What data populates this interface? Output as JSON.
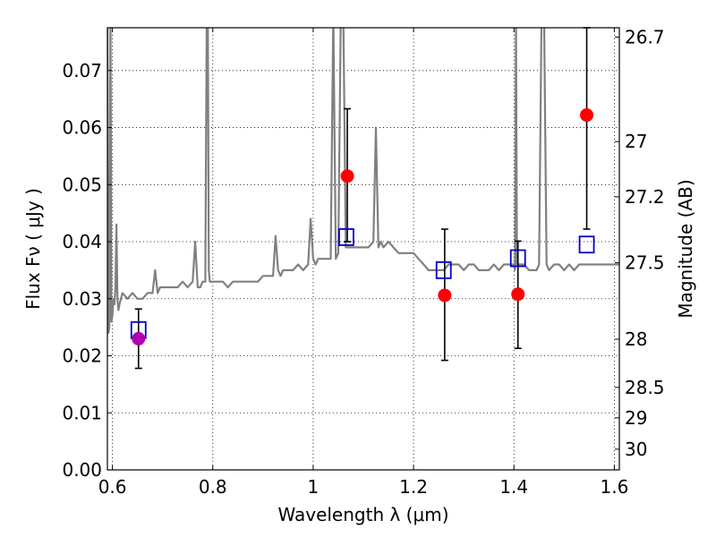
{
  "chart_data": {
    "type": "scatter",
    "title": "",
    "xlabel": "Wavelength  λ (μm)",
    "ylabel": "Flux  Fν  ( μJy )",
    "ylabel_right": "Magnitude (AB)",
    "xlim": [
      0.59,
      1.61
    ],
    "ylim": [
      0.0,
      0.0775
    ],
    "grid": true,
    "x_ticks": [
      {
        "value": 0.6,
        "label": "0.6"
      },
      {
        "value": 0.8,
        "label": "0.8"
      },
      {
        "value": 1.0,
        "label": "1"
      },
      {
        "value": 1.2,
        "label": "1.2"
      },
      {
        "value": 1.4,
        "label": "1.4"
      },
      {
        "value": 1.6,
        "label": "1.6"
      }
    ],
    "y_ticks": [
      {
        "value": 0.0,
        "label": "0.00"
      },
      {
        "value": 0.01,
        "label": "0.01"
      },
      {
        "value": 0.02,
        "label": "0.02"
      },
      {
        "value": 0.03,
        "label": "0.03"
      },
      {
        "value": 0.04,
        "label": "0.04"
      },
      {
        "value": 0.05,
        "label": "0.05"
      },
      {
        "value": 0.06,
        "label": "0.06"
      },
      {
        "value": 0.07,
        "label": "0.07"
      }
    ],
    "mag_ticks": [
      {
        "value": 26.7,
        "label": "26.7"
      },
      {
        "value": 27.0,
        "label": "27"
      },
      {
        "value": 27.2,
        "label": "27.2"
      },
      {
        "value": 27.5,
        "label": "27.5"
      },
      {
        "value": 28.0,
        "label": "28"
      },
      {
        "value": 28.5,
        "label": "28.5"
      },
      {
        "value": 29.0,
        "label": "29"
      },
      {
        "value": 30.0,
        "label": "30"
      }
    ],
    "colors": {
      "spectrum": "#808080",
      "observed": "#ff0000",
      "observed_special": "#b000b0",
      "model": "#0000cc",
      "errorbar": "#000000"
    },
    "spectrum": {
      "x": [
        0.59,
        0.592,
        0.594,
        0.596,
        0.598,
        0.6,
        0.602,
        0.604,
        0.606,
        0.608,
        0.61,
        0.612,
        0.614,
        0.62,
        0.63,
        0.64,
        0.65,
        0.66,
        0.67,
        0.68,
        0.685,
        0.69,
        0.695,
        0.7,
        0.71,
        0.72,
        0.73,
        0.74,
        0.75,
        0.76,
        0.765,
        0.77,
        0.775,
        0.78,
        0.785,
        0.788,
        0.79,
        0.792,
        0.794,
        0.796,
        0.8,
        0.81,
        0.82,
        0.83,
        0.84,
        0.85,
        0.86,
        0.87,
        0.88,
        0.89,
        0.9,
        0.91,
        0.92,
        0.925,
        0.93,
        0.935,
        0.94,
        0.95,
        0.96,
        0.97,
        0.98,
        0.99,
        0.995,
        1.0,
        1.005,
        1.01,
        1.02,
        1.03,
        1.035,
        1.04,
        1.045,
        1.05,
        1.055,
        1.06,
        1.065,
        1.07,
        1.08,
        1.09,
        1.1,
        1.11,
        1.12,
        1.125,
        1.13,
        1.135,
        1.14,
        1.15,
        1.16,
        1.17,
        1.18,
        1.19,
        1.2,
        1.21,
        1.22,
        1.23,
        1.24,
        1.25,
        1.26,
        1.27,
        1.28,
        1.29,
        1.3,
        1.31,
        1.32,
        1.33,
        1.34,
        1.35,
        1.36,
        1.37,
        1.38,
        1.39,
        1.4,
        1.402,
        1.404,
        1.406,
        1.41,
        1.42,
        1.43,
        1.44,
        1.445,
        1.45,
        1.455,
        1.46,
        1.465,
        1.47,
        1.48,
        1.49,
        1.5,
        1.51,
        1.52,
        1.53,
        1.54,
        1.55,
        1.56,
        1.57,
        1.58,
        1.59,
        1.6,
        1.61
      ],
      "y": [
        0.08,
        0.024,
        0.025,
        0.08,
        0.026,
        0.027,
        0.03,
        0.029,
        0.032,
        0.043,
        0.03,
        0.028,
        0.029,
        0.031,
        0.03,
        0.031,
        0.03,
        0.03,
        0.031,
        0.031,
        0.035,
        0.031,
        0.032,
        0.032,
        0.032,
        0.032,
        0.032,
        0.033,
        0.032,
        0.033,
        0.04,
        0.032,
        0.032,
        0.033,
        0.033,
        0.08,
        0.08,
        0.035,
        0.033,
        0.033,
        0.033,
        0.033,
        0.033,
        0.032,
        0.033,
        0.033,
        0.033,
        0.033,
        0.033,
        0.033,
        0.034,
        0.034,
        0.034,
        0.041,
        0.035,
        0.034,
        0.035,
        0.035,
        0.035,
        0.036,
        0.035,
        0.036,
        0.044,
        0.037,
        0.036,
        0.037,
        0.037,
        0.037,
        0.037,
        0.08,
        0.037,
        0.038,
        0.08,
        0.08,
        0.039,
        0.039,
        0.039,
        0.039,
        0.039,
        0.039,
        0.04,
        0.06,
        0.039,
        0.04,
        0.039,
        0.04,
        0.039,
        0.038,
        0.038,
        0.038,
        0.038,
        0.037,
        0.036,
        0.035,
        0.035,
        0.035,
        0.035,
        0.036,
        0.036,
        0.036,
        0.035,
        0.036,
        0.036,
        0.035,
        0.035,
        0.035,
        0.036,
        0.035,
        0.036,
        0.036,
        0.036,
        0.035,
        0.08,
        0.036,
        0.036,
        0.036,
        0.035,
        0.035,
        0.035,
        0.036,
        0.08,
        0.08,
        0.036,
        0.035,
        0.036,
        0.036,
        0.035,
        0.036,
        0.035,
        0.036,
        0.036,
        0.036,
        0.036,
        0.036,
        0.036,
        0.036,
        0.036,
        0.036
      ]
    },
    "observed": [
      {
        "x": 0.652,
        "y": 0.023,
        "err_lo": 0.0178,
        "err_hi": 0.0282,
        "color": "observed_special"
      },
      {
        "x": 1.068,
        "y": 0.0515,
        "err_lo": 0.04,
        "err_hi": 0.0633,
        "color": "observed"
      },
      {
        "x": 1.262,
        "y": 0.0306,
        "err_lo": 0.0192,
        "err_hi": 0.0422,
        "color": "observed"
      },
      {
        "x": 1.408,
        "y": 0.0308,
        "err_lo": 0.0213,
        "err_hi": 0.0401,
        "color": "observed"
      },
      {
        "x": 1.545,
        "y": 0.0622,
        "err_lo": 0.0422,
        "err_hi": 0.0775,
        "color": "observed"
      }
    ],
    "model": [
      {
        "x": 0.652,
        "y": 0.0245
      },
      {
        "x": 1.066,
        "y": 0.0408
      },
      {
        "x": 1.26,
        "y": 0.035
      },
      {
        "x": 1.408,
        "y": 0.0371
      },
      {
        "x": 1.545,
        "y": 0.0395
      }
    ]
  }
}
